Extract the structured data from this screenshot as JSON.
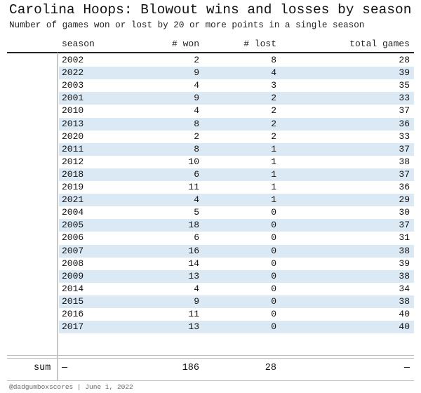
{
  "header": {
    "title": "Carolina Hoops: Blowout wins and losses by season",
    "subtitle": "Number of games won or lost by 20 or more points in a single season"
  },
  "chart_data": {
    "type": "table",
    "columns": [
      "season",
      "# won",
      "# lost",
      "total games"
    ],
    "rows": [
      [
        "2002",
        "2",
        "8",
        "28"
      ],
      [
        "2022",
        "9",
        "4",
        "39"
      ],
      [
        "2003",
        "4",
        "3",
        "35"
      ],
      [
        "2001",
        "9",
        "2",
        "33"
      ],
      [
        "2010",
        "4",
        "2",
        "37"
      ],
      [
        "2013",
        "8",
        "2",
        "36"
      ],
      [
        "2020",
        "2",
        "2",
        "33"
      ],
      [
        "2011",
        "8",
        "1",
        "37"
      ],
      [
        "2012",
        "10",
        "1",
        "38"
      ],
      [
        "2018",
        "6",
        "1",
        "37"
      ],
      [
        "2019",
        "11",
        "1",
        "36"
      ],
      [
        "2021",
        "4",
        "1",
        "29"
      ],
      [
        "2004",
        "5",
        "0",
        "30"
      ],
      [
        "2005",
        "18",
        "0",
        "37"
      ],
      [
        "2006",
        "6",
        "0",
        "31"
      ],
      [
        "2007",
        "16",
        "0",
        "38"
      ],
      [
        "2008",
        "14",
        "0",
        "39"
      ],
      [
        "2009",
        "13",
        "0",
        "38"
      ],
      [
        "2014",
        "4",
        "0",
        "34"
      ],
      [
        "2015",
        "9",
        "0",
        "38"
      ],
      [
        "2016",
        "11",
        "0",
        "40"
      ],
      [
        "2017",
        "13",
        "0",
        "40"
      ]
    ],
    "summary": {
      "label": "sum",
      "season": "—",
      "won": "186",
      "lost": "28",
      "total": "—"
    }
  },
  "footer": {
    "credit": "@dadgumboxscores | June 1, 2022"
  }
}
